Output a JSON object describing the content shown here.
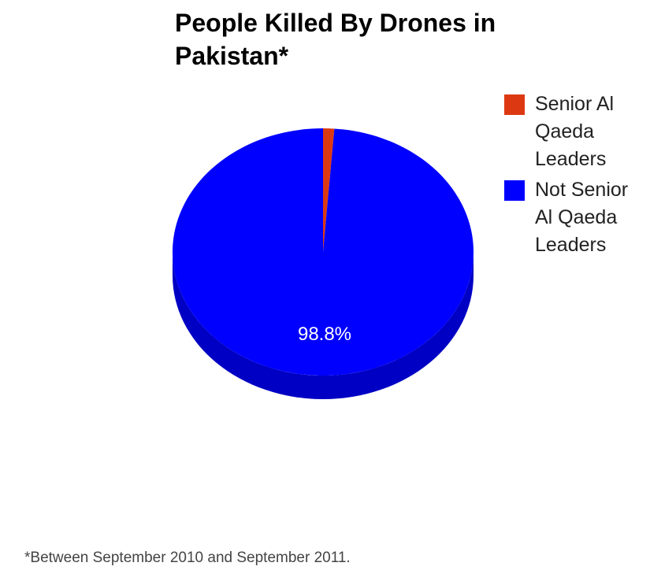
{
  "chart_data": {
    "type": "pie",
    "title": "People Killed By Drones in Pakistan*",
    "slices": [
      {
        "label": "Senior Al Qaeda Leaders",
        "value": 1.2,
        "color": "#dc3912",
        "side_color": "#a82c0e",
        "data_label": ""
      },
      {
        "label": "Not Senior Al Qaeda Leaders",
        "value": 98.8,
        "color": "#0000ff",
        "side_color": "#0000c4",
        "data_label": "98.8%"
      }
    ],
    "legend_position": "right",
    "three_d": true,
    "footnote": "*Between September 2010 and September 2011."
  }
}
